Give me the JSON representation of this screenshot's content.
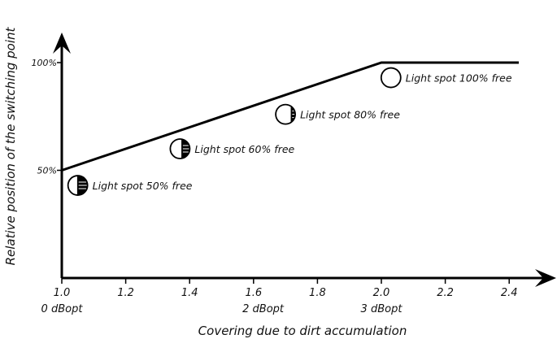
{
  "chart_data": {
    "type": "line",
    "xlabel": "Covering due to dirt accumulation",
    "ylabel": "Relative position of the switching point",
    "x_ticks": [
      "1.0",
      "1.2",
      "1.4",
      "1.6",
      "1.8",
      "2.0",
      "2.2",
      "2.4"
    ],
    "x_sub_ticks": [
      {
        "x": 1.0,
        "label": "0 dBopt"
      },
      {
        "x": 1.63,
        "label": "2 dBopt"
      },
      {
        "x": 2.0,
        "label": "3 dBopt"
      }
    ],
    "y_ticks": [
      {
        "y": 50,
        "label": "50%"
      },
      {
        "y": 100,
        "label": "100%"
      }
    ],
    "xlim": [
      1.0,
      2.4
    ],
    "ylim": [
      0,
      100
    ],
    "series": [
      {
        "x": [
          1.0,
          2.0,
          2.43
        ],
        "y": [
          50,
          100,
          100
        ],
        "color": "#000000"
      }
    ],
    "annotations": [
      {
        "x": 1.05,
        "y": 43,
        "fill_fraction": 0.5,
        "label": "Light spot 50% free"
      },
      {
        "x": 1.37,
        "y": 60,
        "fill_fraction": 0.4,
        "label": "Light spot 60% free"
      },
      {
        "x": 1.7,
        "y": 76,
        "fill_fraction": 0.2,
        "label": "Light spot 80% free"
      },
      {
        "x": 2.03,
        "y": 93,
        "fill_fraction": 0.0,
        "label": "Light spot 100% free"
      }
    ],
    "grid": false
  }
}
